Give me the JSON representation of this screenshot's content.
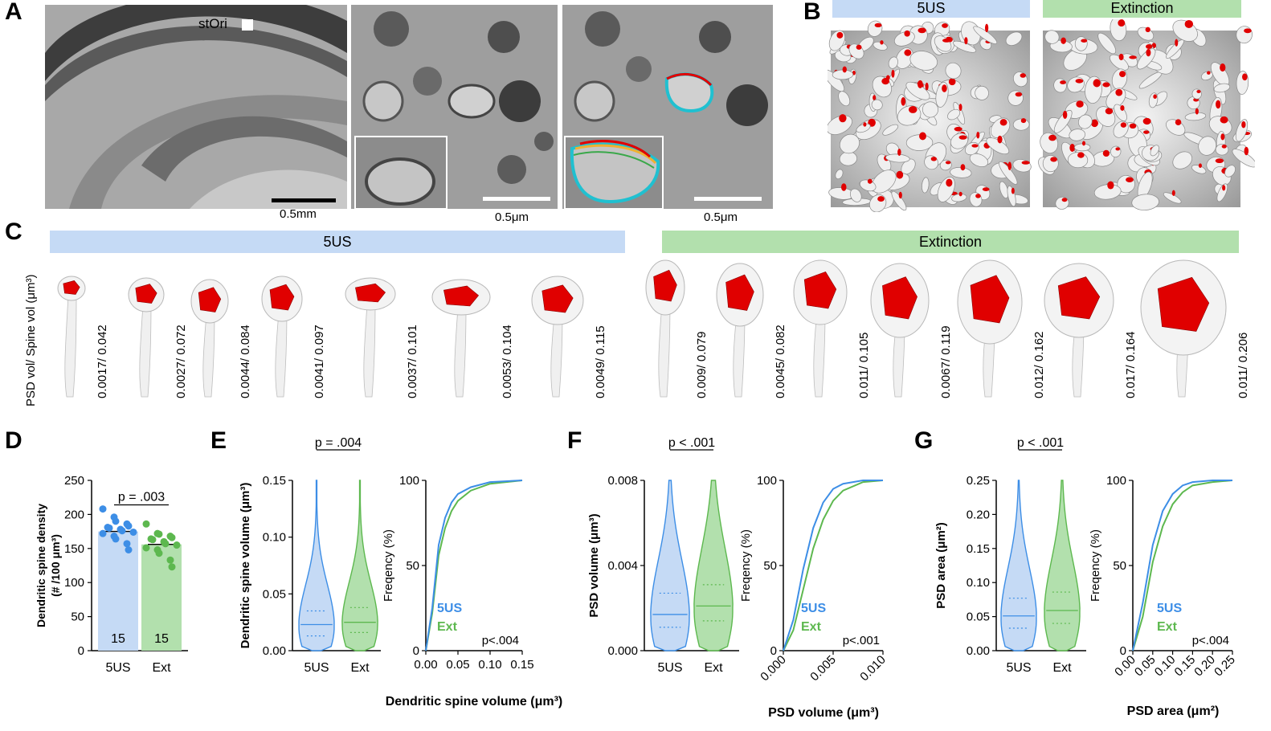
{
  "panels": {
    "A": "A",
    "B": "B",
    "C": "C",
    "D": "D",
    "E": "E",
    "F": "F",
    "G": "G"
  },
  "panelA": {
    "region_label": "stOri",
    "scale_1": "0.5mm",
    "scale_2": "0.5μm",
    "scale_3": "0.5μm"
  },
  "panelB": {
    "group_1": "5US",
    "group_2": "Extinction",
    "group_1_color": "#c5daf5",
    "group_2_color": "#b2e0ad"
  },
  "panelC": {
    "axis_label": "PSD vol/ Spine vol (μm³)",
    "group_1": "5US",
    "group_2": "Extinction",
    "spines_5US": [
      "0.0017/ 0.042",
      "0.0027/ 0.072",
      "0.0044/ 0.084",
      "0.0041/ 0.097",
      "0.0037/ 0.101",
      "0.0053/ 0.104",
      "0.0049/ 0.115"
    ],
    "spines_Ext": [
      "0.009/ 0.079",
      "0.0045/ 0.082",
      "0.011/ 0.105",
      "0.0067/ 0.119",
      "0.012/ 0.162",
      "0.017/ 0.164",
      "0.011/ 0.206"
    ]
  },
  "colors": {
    "blue": "#3d8ee6",
    "green": "#5db84f",
    "blue_fill": "#c5daf5",
    "green_fill": "#b2e0ad",
    "psd_red": "#e00000"
  },
  "chart_data": [
    {
      "panel": "D",
      "type": "bar",
      "categories": [
        "5US",
        "Ext"
      ],
      "values": [
        175,
        156
      ],
      "counts": [
        "15",
        "15"
      ],
      "ylabel": "Dendritic spine density (# /100 μm³)",
      "ylim": [
        0,
        250
      ],
      "yticks": [
        "0",
        "50",
        "100",
        "150",
        "200",
        "250"
      ],
      "p_label": "p = .003",
      "points_5US": [
        208,
        196,
        190,
        186,
        183,
        181,
        180,
        178,
        176,
        174,
        172,
        168,
        164,
        157,
        148
      ],
      "points_Ext": [
        186,
        172,
        171,
        168,
        166,
        164,
        163,
        160,
        157,
        155,
        151,
        148,
        143,
        133,
        123
      ]
    },
    {
      "panel": "E",
      "type": "violin",
      "categories": [
        "5US",
        "Ext"
      ],
      "ylabel": "Dendritic spine volume (μm³)",
      "ylim": [
        0,
        0.15
      ],
      "yticks": [
        "0.00",
        "0.05",
        "0.10",
        "0.15"
      ],
      "medians": [
        0.023,
        0.025
      ],
      "q1": [
        0.013,
        0.016
      ],
      "q3": [
        0.035,
        0.038
      ],
      "p_label": "p = .004"
    },
    {
      "panel": "E",
      "type": "line",
      "series": [
        {
          "name": "5US",
          "x": [
            0,
            0.01,
            0.02,
            0.03,
            0.04,
            0.05,
            0.07,
            0.1,
            0.15
          ],
          "values": [
            0,
            25,
            62,
            78,
            87,
            92,
            96,
            99,
            100
          ]
        },
        {
          "name": "Ext",
          "x": [
            0,
            0.01,
            0.02,
            0.03,
            0.04,
            0.05,
            0.07,
            0.1,
            0.15
          ],
          "values": [
            0,
            22,
            56,
            72,
            82,
            88,
            94,
            98,
            100
          ]
        }
      ],
      "xlabel": "Dendritic spine volume (μm³)",
      "ylabel": "Freqency (%)",
      "xlim": [
        0,
        0.15
      ],
      "ylim": [
        0,
        100
      ],
      "xticks": [
        "0.00",
        "0.05",
        "0.10",
        "0.15"
      ],
      "yticks": [
        "0",
        "50",
        "100"
      ],
      "p_label": "p<.004"
    },
    {
      "panel": "F",
      "type": "violin",
      "categories": [
        "5US",
        "Ext"
      ],
      "ylabel": "PSD volume (μm³)",
      "ylim": [
        0,
        0.008
      ],
      "yticks": [
        "0.000",
        "0.004",
        "0.008"
      ],
      "medians": [
        0.0017,
        0.0021
      ],
      "q1": [
        0.0011,
        0.0014
      ],
      "q3": [
        0.0027,
        0.0031
      ],
      "p_label": "p < .001"
    },
    {
      "panel": "F",
      "type": "line",
      "series": [
        {
          "name": "5US",
          "x": [
            0,
            0.001,
            0.002,
            0.003,
            0.004,
            0.005,
            0.006,
            0.008,
            0.01
          ],
          "values": [
            0,
            18,
            48,
            72,
            87,
            95,
            98,
            100,
            100
          ]
        },
        {
          "name": "Ext",
          "x": [
            0,
            0.001,
            0.002,
            0.003,
            0.004,
            0.005,
            0.006,
            0.008,
            0.01
          ],
          "values": [
            0,
            12,
            36,
            60,
            77,
            88,
            94,
            99,
            100
          ]
        }
      ],
      "xlabel": "PSD volume (μm³)",
      "ylabel": "Freqency (%)",
      "xlim": [
        0,
        0.01
      ],
      "ylim": [
        0,
        100
      ],
      "xticks": [
        "0.000",
        "0.005",
        "0.010"
      ],
      "yticks": [
        "0",
        "50",
        "100"
      ],
      "p_label": "p<.001"
    },
    {
      "panel": "G",
      "type": "violin",
      "categories": [
        "5US",
        "Ext"
      ],
      "ylabel": "PSD area (μm²)",
      "ylim": [
        0,
        0.25
      ],
      "yticks": [
        "0.00",
        "0.05",
        "0.10",
        "0.15",
        "0.20",
        "0.25"
      ],
      "medians": [
        0.051,
        0.059
      ],
      "q1": [
        0.033,
        0.04
      ],
      "q3": [
        0.077,
        0.086
      ],
      "p_label": "p < .001"
    },
    {
      "panel": "G",
      "type": "line",
      "series": [
        {
          "name": "5US",
          "x": [
            0,
            0.025,
            0.05,
            0.075,
            0.1,
            0.125,
            0.15,
            0.2,
            0.25
          ],
          "values": [
            0,
            28,
            62,
            82,
            92,
            97,
            99,
            100,
            100
          ]
        },
        {
          "name": "Ext",
          "x": [
            0,
            0.025,
            0.05,
            0.075,
            0.1,
            0.125,
            0.15,
            0.2,
            0.25
          ],
          "values": [
            0,
            20,
            52,
            73,
            86,
            93,
            97,
            99,
            100
          ]
        }
      ],
      "xlabel": "PSD area (μm²)",
      "ylabel": "Freqency (%)",
      "xlim": [
        0,
        0.25
      ],
      "ylim": [
        0,
        100
      ],
      "xticks": [
        "0.00",
        "0.05",
        "0.10",
        "0.15",
        "0.20",
        "0.25"
      ],
      "yticks": [
        "0",
        "50",
        "100"
      ],
      "p_label": "p<.004"
    }
  ]
}
